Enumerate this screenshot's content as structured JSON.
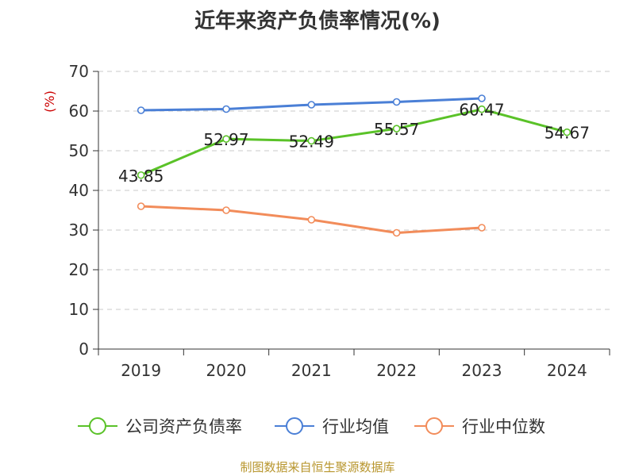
{
  "chart_data": {
    "type": "line",
    "title": "近年来资产负债率情况(%)",
    "ylabel": "(%)",
    "xlabel": "",
    "categories": [
      "2019",
      "2020",
      "2021",
      "2022",
      "2023",
      "2024"
    ],
    "ylim": [
      0,
      70
    ],
    "yticks": [
      0,
      10,
      20,
      30,
      40,
      50,
      60,
      70
    ],
    "grid": true,
    "legend": "bottom",
    "series": [
      {
        "name": "公司资产负债率",
        "color": "#5ac228",
        "values": [
          43.85,
          52.97,
          52.49,
          55.57,
          60.47,
          54.67
        ],
        "labels": [
          "43.85",
          "52.97",
          "52.49",
          "55.57",
          "60.47",
          "54.67"
        ]
      },
      {
        "name": "行业均值",
        "color": "#4a7fd6",
        "values": [
          60.2,
          60.5,
          61.6,
          62.3,
          63.2,
          null
        ]
      },
      {
        "name": "行业中位数",
        "color": "#f28c5a",
        "values": [
          36.0,
          35.0,
          32.6,
          29.3,
          30.6,
          null
        ]
      }
    ],
    "source": "制图数据来自恒生聚源数据库"
  }
}
